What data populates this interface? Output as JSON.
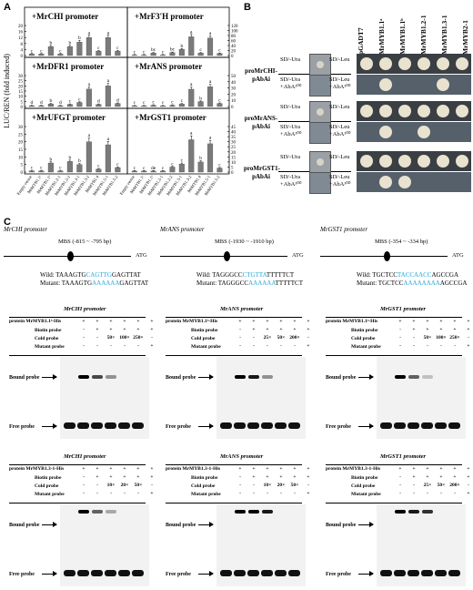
{
  "panels": {
    "a": "A",
    "b": "B",
    "c": "C"
  },
  "panel_a": {
    "ylabel": "LUC/REN (fold induced)",
    "xlabels": [
      "Empty vector",
      "MrMYB1.1ᵃ",
      "MrMYB1.1ᵇ",
      "MrMYB1.2-1",
      "MrMYB1.2-2",
      "MrMYB1.3-1",
      "MrMYB1.3-2",
      "MrMYB1.4",
      "MrMYB1.5-1",
      "MrMYB1.5-2"
    ],
    "colors": {
      "bar": "#7a7a7a",
      "border": "#000000"
    }
  },
  "chart_data": [
    {
      "type": "bar",
      "title": "+MrCHI promoter",
      "ylim": [
        0,
        20
      ],
      "ticks": [
        "0",
        "4",
        "8",
        "12",
        "16",
        "20"
      ],
      "values": [
        1,
        1,
        6,
        1,
        6,
        9,
        12,
        3,
        12,
        3
      ],
      "letters": [
        "c",
        "c",
        "b",
        "c",
        "b",
        "b",
        "a",
        "c",
        "a",
        "c"
      ]
    },
    {
      "type": "bar",
      "title": "+MrF3'H promoter",
      "ylim": [
        0,
        120
      ],
      "ticks": [
        "0",
        "20",
        "40",
        "60",
        "80",
        "100",
        "120"
      ],
      "values": [
        2,
        2,
        10,
        2,
        12,
        25,
        75,
        10,
        70,
        8
      ],
      "letters": [
        "c",
        "c",
        "bc",
        "c",
        "bc",
        "b",
        "a",
        "c",
        "a",
        "c"
      ]
    },
    {
      "type": "bar",
      "title": "+MrDFR1 promoter",
      "ylim": [
        0,
        30
      ],
      "ticks": [
        "0",
        "5",
        "10",
        "15",
        "20",
        "25",
        "30"
      ],
      "values": [
        0.8,
        0.8,
        2.5,
        0.8,
        2,
        4,
        17,
        2,
        20,
        3
      ],
      "letters": [
        "d",
        "d",
        "b",
        "d",
        "c",
        "c",
        "a",
        "d",
        "a",
        "d"
      ]
    },
    {
      "type": "bar",
      "title": "+MrANS promoter",
      "ylim": [
        0,
        50
      ],
      "ticks": [
        "0",
        "10",
        "20",
        "30",
        "40",
        "50"
      ],
      "values": [
        1,
        1,
        2,
        1,
        2,
        4,
        28,
        8,
        32,
        5
      ],
      "letters": [
        "c",
        "c",
        "c",
        "c",
        "c",
        "c",
        "a",
        "b",
        "a",
        "c"
      ]
    },
    {
      "type": "bar",
      "title": "+MrUFGT promoter",
      "ylim": [
        0,
        30
      ],
      "ticks": [
        "0",
        "5",
        "10",
        "15",
        "20",
        "25",
        "30"
      ],
      "values": [
        0.8,
        0.8,
        6,
        0.8,
        7,
        5,
        20,
        2,
        18,
        3
      ],
      "letters": [
        "c",
        "c",
        "b",
        "c",
        "b",
        "b",
        "a",
        "c",
        "a",
        "c"
      ]
    },
    {
      "type": "bar",
      "title": "+MrGST1 promoter",
      "ylim": [
        0,
        45
      ],
      "ticks": [
        "0",
        "5",
        "10",
        "15",
        "20",
        "25",
        "30",
        "35",
        "40",
        "45"
      ],
      "values": [
        1,
        1,
        1,
        1,
        5,
        8,
        32,
        10,
        28,
        4
      ],
      "letters": [
        "c",
        "c",
        "de",
        "c",
        "c",
        "c",
        "a",
        "b",
        "a",
        "c"
      ]
    }
  ],
  "panel_b": {
    "columns": [
      "pGADT7",
      "MrMYB1.1ᵃ",
      "MrMYB1.1ᵇ",
      "MrMYB1.2-1",
      "MrMYB1.3-1",
      "MrMYB2-1"
    ],
    "groups": [
      {
        "name": "proMrCHI-pAbAi",
        "left_top": "SD/-Ura",
        "left_bottom": "SD/-Ura +AbA¹⁰⁰",
        "right_top": "SD/-Leu",
        "right_bottom": "SD/-Leu +AbA¹⁰⁰"
      },
      {
        "name": "proMrANS-pAbAi",
        "left_top": "SD/-Ura",
        "left_bottom": "SD/-Ura +AbA¹⁰⁰",
        "right_top": "SD/-Leu",
        "right_bottom": "SD/-Leu +AbA¹⁰⁰"
      },
      {
        "name": "proMrGST1-pAbAi",
        "left_top": "SD/-Ura",
        "left_bottom": "SD/-Ura +AbA¹⁰⁰",
        "right_top": "SD/-Leu",
        "right_bottom": "SD/-Leu +AbA¹⁰⁰"
      }
    ]
  },
  "panel_c": {
    "promoters": [
      {
        "name": "MrCHI promoter",
        "mbs": "MBS (-815 ~ -795 bp)",
        "atg": "ATG",
        "wild_label": "Wild:",
        "wild_pre": "TAAAGTG",
        "wild_core": "CAGTTG",
        "wild_post": "GAGTTAT",
        "mut_label": "Mutant:",
        "mut_pre": "TAAAGTG",
        "mut_core": "AAAAAA",
        "mut_post": "GAGTTAT"
      },
      {
        "name": "MrANS promoter",
        "mbs": "MBS (-1930 ~ -1910 bp)",
        "atg": "ATG",
        "wild_label": "Wild:",
        "wild_pre": "TAGGGCC",
        "wild_core": "CTGTTA",
        "wild_post": "TTTTTCT",
        "mut_label": "Mutant:",
        "mut_pre": "TAGGGCC",
        "mut_core": "AAAAAA",
        "mut_post": "TTTTTCT"
      },
      {
        "name": "MrGST1 promoter",
        "mbs": "MBS (-354 ~ -334 bp)",
        "atg": "ATG",
        "wild_label": "Wild:",
        "wild_pre": "TGCTCC",
        "wild_core": "TACCAACC",
        "wild_post": "AGCCGA",
        "mut_label": "Mutant:",
        "mut_pre": "TGCTCC",
        "mut_core": "AAAAAAAA",
        "mut_post": "AGCCGA"
      }
    ],
    "emsa": [
      {
        "title": "MrCHI promoter",
        "protein": "protein MrMYB1.1ᵃ-His",
        "rows": [
          [
            "+",
            "+",
            "+",
            "+",
            "+",
            "+"
          ],
          [
            "-",
            "+",
            "+",
            "+",
            "+",
            "+"
          ],
          [
            "-",
            "-",
            "50×",
            "100×",
            "250×",
            "-"
          ],
          [
            "-",
            "-",
            "-",
            "-",
            "-",
            "+"
          ]
        ],
        "bands": [
          0,
          1,
          0.7,
          0.4,
          0,
          1
        ]
      },
      {
        "title": "MrANS promoter",
        "protein": "protein MrMYB1.1ᵃ-His",
        "rows": [
          [
            "+",
            "+",
            "+",
            "+",
            "+",
            "+"
          ],
          [
            "-",
            "+",
            "+",
            "+",
            "+",
            "+"
          ],
          [
            "-",
            "-",
            "25×",
            "50×",
            "200×",
            "-"
          ],
          [
            "-",
            "-",
            "-",
            "-",
            "-",
            "+"
          ]
        ],
        "bands": [
          0,
          1,
          0.9,
          0.4,
          0,
          1
        ]
      },
      {
        "title": "MrGST1 promoter",
        "protein": "protein MrMYB1.1ᵃ-His",
        "rows": [
          [
            "+",
            "+",
            "+",
            "+",
            "+",
            "+"
          ],
          [
            "-",
            "+",
            "+",
            "+",
            "+",
            "+"
          ],
          [
            "-",
            "-",
            "50×",
            "100×",
            "250×",
            "-"
          ],
          [
            "-",
            "-",
            "-",
            "-",
            "-",
            "+"
          ]
        ],
        "bands": [
          0,
          1,
          0.6,
          0.2,
          0,
          1
        ]
      },
      {
        "title": "MrCHI promoter",
        "protein": "protein MrMYB1.3-1-His",
        "rows": [
          [
            "+",
            "+",
            "+",
            "+",
            "+",
            "+"
          ],
          [
            "-",
            "+",
            "+",
            "+",
            "+",
            "+"
          ],
          [
            "-",
            "-",
            "10×",
            "20×",
            "50×",
            "-"
          ],
          [
            "-",
            "-",
            "-",
            "-",
            "-",
            "+"
          ]
        ],
        "bands": [
          0,
          1,
          0.6,
          0.3,
          0,
          1
        ]
      },
      {
        "title": "MrANS promoter",
        "protein": "protein MrMYB1.3-1-His",
        "rows": [
          [
            "+",
            "+",
            "+",
            "+",
            "+",
            "+"
          ],
          [
            "-",
            "+",
            "+",
            "+",
            "+",
            "+"
          ],
          [
            "-",
            "-",
            "10×",
            "20×",
            "50×",
            "-"
          ],
          [
            "-",
            "-",
            "-",
            "-",
            "-",
            "+"
          ]
        ],
        "bands": [
          0,
          1,
          1,
          0.9,
          0,
          1
        ]
      },
      {
        "title": "MrGST1 promoter",
        "protein": "protein MrMYB1.3-1-His",
        "rows": [
          [
            "+",
            "+",
            "+",
            "+",
            "+",
            "+"
          ],
          [
            "-",
            "+",
            "+",
            "+",
            "+",
            "+"
          ],
          [
            "-",
            "-",
            "25×",
            "50×",
            "200×",
            "-"
          ],
          [
            "-",
            "-",
            "-",
            "-",
            "-",
            "+"
          ]
        ],
        "bands": [
          0,
          1,
          0.9,
          0.8,
          0,
          1
        ]
      }
    ],
    "row_labels": [
      "Biotin probe",
      "Cold probe",
      "Mutant probe"
    ],
    "bound": "Bound probe",
    "free": "Free probe"
  }
}
